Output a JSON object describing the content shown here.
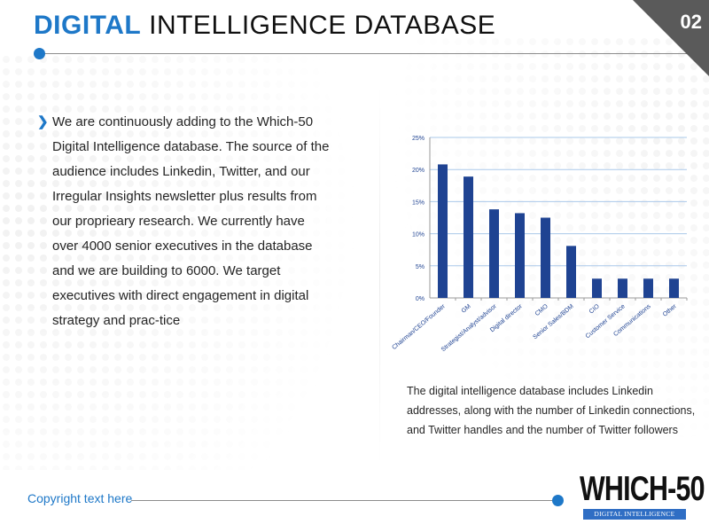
{
  "header": {
    "title_accent": "DIGITAL",
    "title_rest": "INTELLIGENCE DATABASE",
    "page_number": "02"
  },
  "body": {
    "bullet_text": "We are continuously adding to the Which-50 Digital Intelligence database. The source of the audience includes Linkedin, Twitter, and our Irregular Insights newsletter plus results from our proprieary research. We currently have over 4000 senior executives in the database and we are building to 6000. We target executives with direct engagement in digital strategy and prac-tice"
  },
  "caption": "The digital intelligence database includes Linkedin addresses, along with the number of  Linkedin connections,  and Twitter handles and the number of Twitter followers",
  "footer": {
    "copyright": "Copyright text here"
  },
  "logo": {
    "main": "WHICH-50",
    "sub": "DIGITAL INTELLIGENCE"
  },
  "colors": {
    "accent": "#1e78c8",
    "bar": "#1f4392",
    "corner": "#5a5a5a",
    "grid": "#aac8ea"
  },
  "chart_data": {
    "type": "bar",
    "categories": [
      "Chairman/CEO/Founder",
      "GM",
      "Strategist/Analyst/advisor",
      "Digital director",
      "CMO",
      "Senior Sales/BDM",
      "CIO",
      "Customer Service",
      "Communications",
      "Other"
    ],
    "values": [
      20.8,
      18.9,
      13.8,
      13.2,
      12.5,
      8.1,
      3.0,
      3.0,
      3.0,
      3.0
    ],
    "title": "",
    "xlabel": "",
    "ylabel": "",
    "ylim": [
      0,
      25
    ],
    "yticks": [
      0,
      5,
      10,
      15,
      20,
      25
    ],
    "ytick_labels": [
      "0%",
      "5%",
      "10%",
      "15%",
      "20%",
      "25%"
    ],
    "grid": true,
    "legend": "none"
  }
}
